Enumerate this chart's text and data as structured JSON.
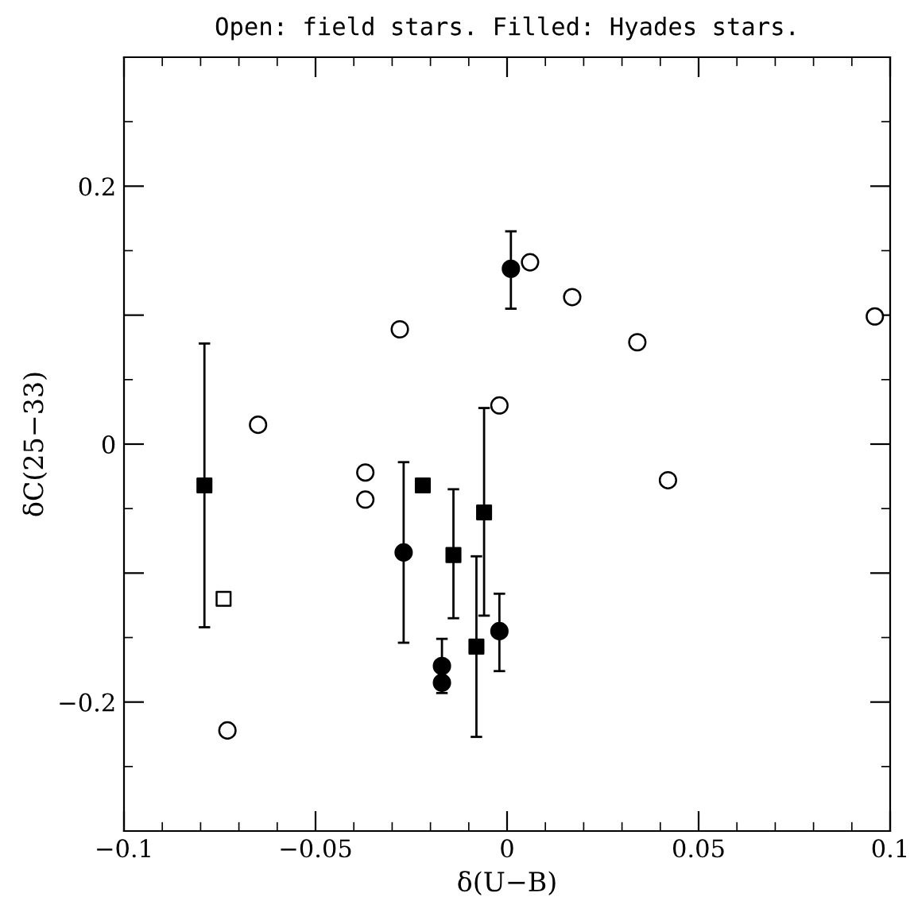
{
  "chart_data": {
    "type": "scatter",
    "title": "Open: field stars. Filled: Hyades stars.",
    "xlabel": "δ(U−B)",
    "ylabel": "δC(25−33)",
    "xlim": [
      -0.1,
      0.1
    ],
    "ylim": [
      -0.3,
      0.3
    ],
    "xticks": [
      {
        "value": -0.1,
        "label": "−0.1"
      },
      {
        "value": -0.05,
        "label": "−0.05"
      },
      0,
      0.05,
      0.1
    ],
    "yticks": [
      {
        "value": -0.2,
        "label": "−0.2"
      },
      {
        "value": -0.1,
        "label": null
      },
      0,
      {
        "value": 0.1,
        "label": null
      },
      0.2
    ],
    "grid": false,
    "legend": false,
    "series": [
      {
        "marker": "circle",
        "color": "#ffffff",
        "x": [
          0.006,
          0.017,
          0.034,
          0.042,
          0.096,
          -0.028,
          -0.065,
          -0.002,
          -0.037,
          -0.037,
          -0.073
        ],
        "values": [
          0.141,
          0.114,
          0.079,
          -0.028,
          0.099,
          0.089,
          0.015,
          0.03,
          -0.022,
          -0.043,
          -0.222
        ]
      },
      {
        "marker": "square",
        "color": "#ffffff",
        "x": [
          -0.074
        ],
        "values": [
          -0.12
        ]
      },
      {
        "marker": "circle",
        "color": "#000000",
        "x": [
          0.001,
          -0.027,
          -0.017,
          -0.017,
          -0.002
        ],
        "values": [
          0.136,
          -0.084,
          -0.172,
          -0.185,
          -0.145
        ],
        "errors": [
          [
            0.105,
            0.165
          ],
          [
            -0.154,
            -0.014
          ],
          [
            -0.172,
            -0.151
          ],
          [
            -0.193,
            -0.185
          ],
          [
            -0.176,
            -0.116
          ]
        ]
      },
      {
        "marker": "square",
        "color": "#000000",
        "x": [
          -0.079,
          -0.022,
          -0.014,
          -0.006,
          -0.008
        ],
        "values": [
          -0.032,
          -0.032,
          -0.086,
          -0.053,
          -0.157
        ],
        "errors": [
          [
            -0.142,
            0.078
          ],
          null,
          [
            -0.135,
            -0.035
          ],
          [
            -0.133,
            0.028
          ],
          [
            -0.227,
            -0.087
          ]
        ]
      }
    ]
  }
}
